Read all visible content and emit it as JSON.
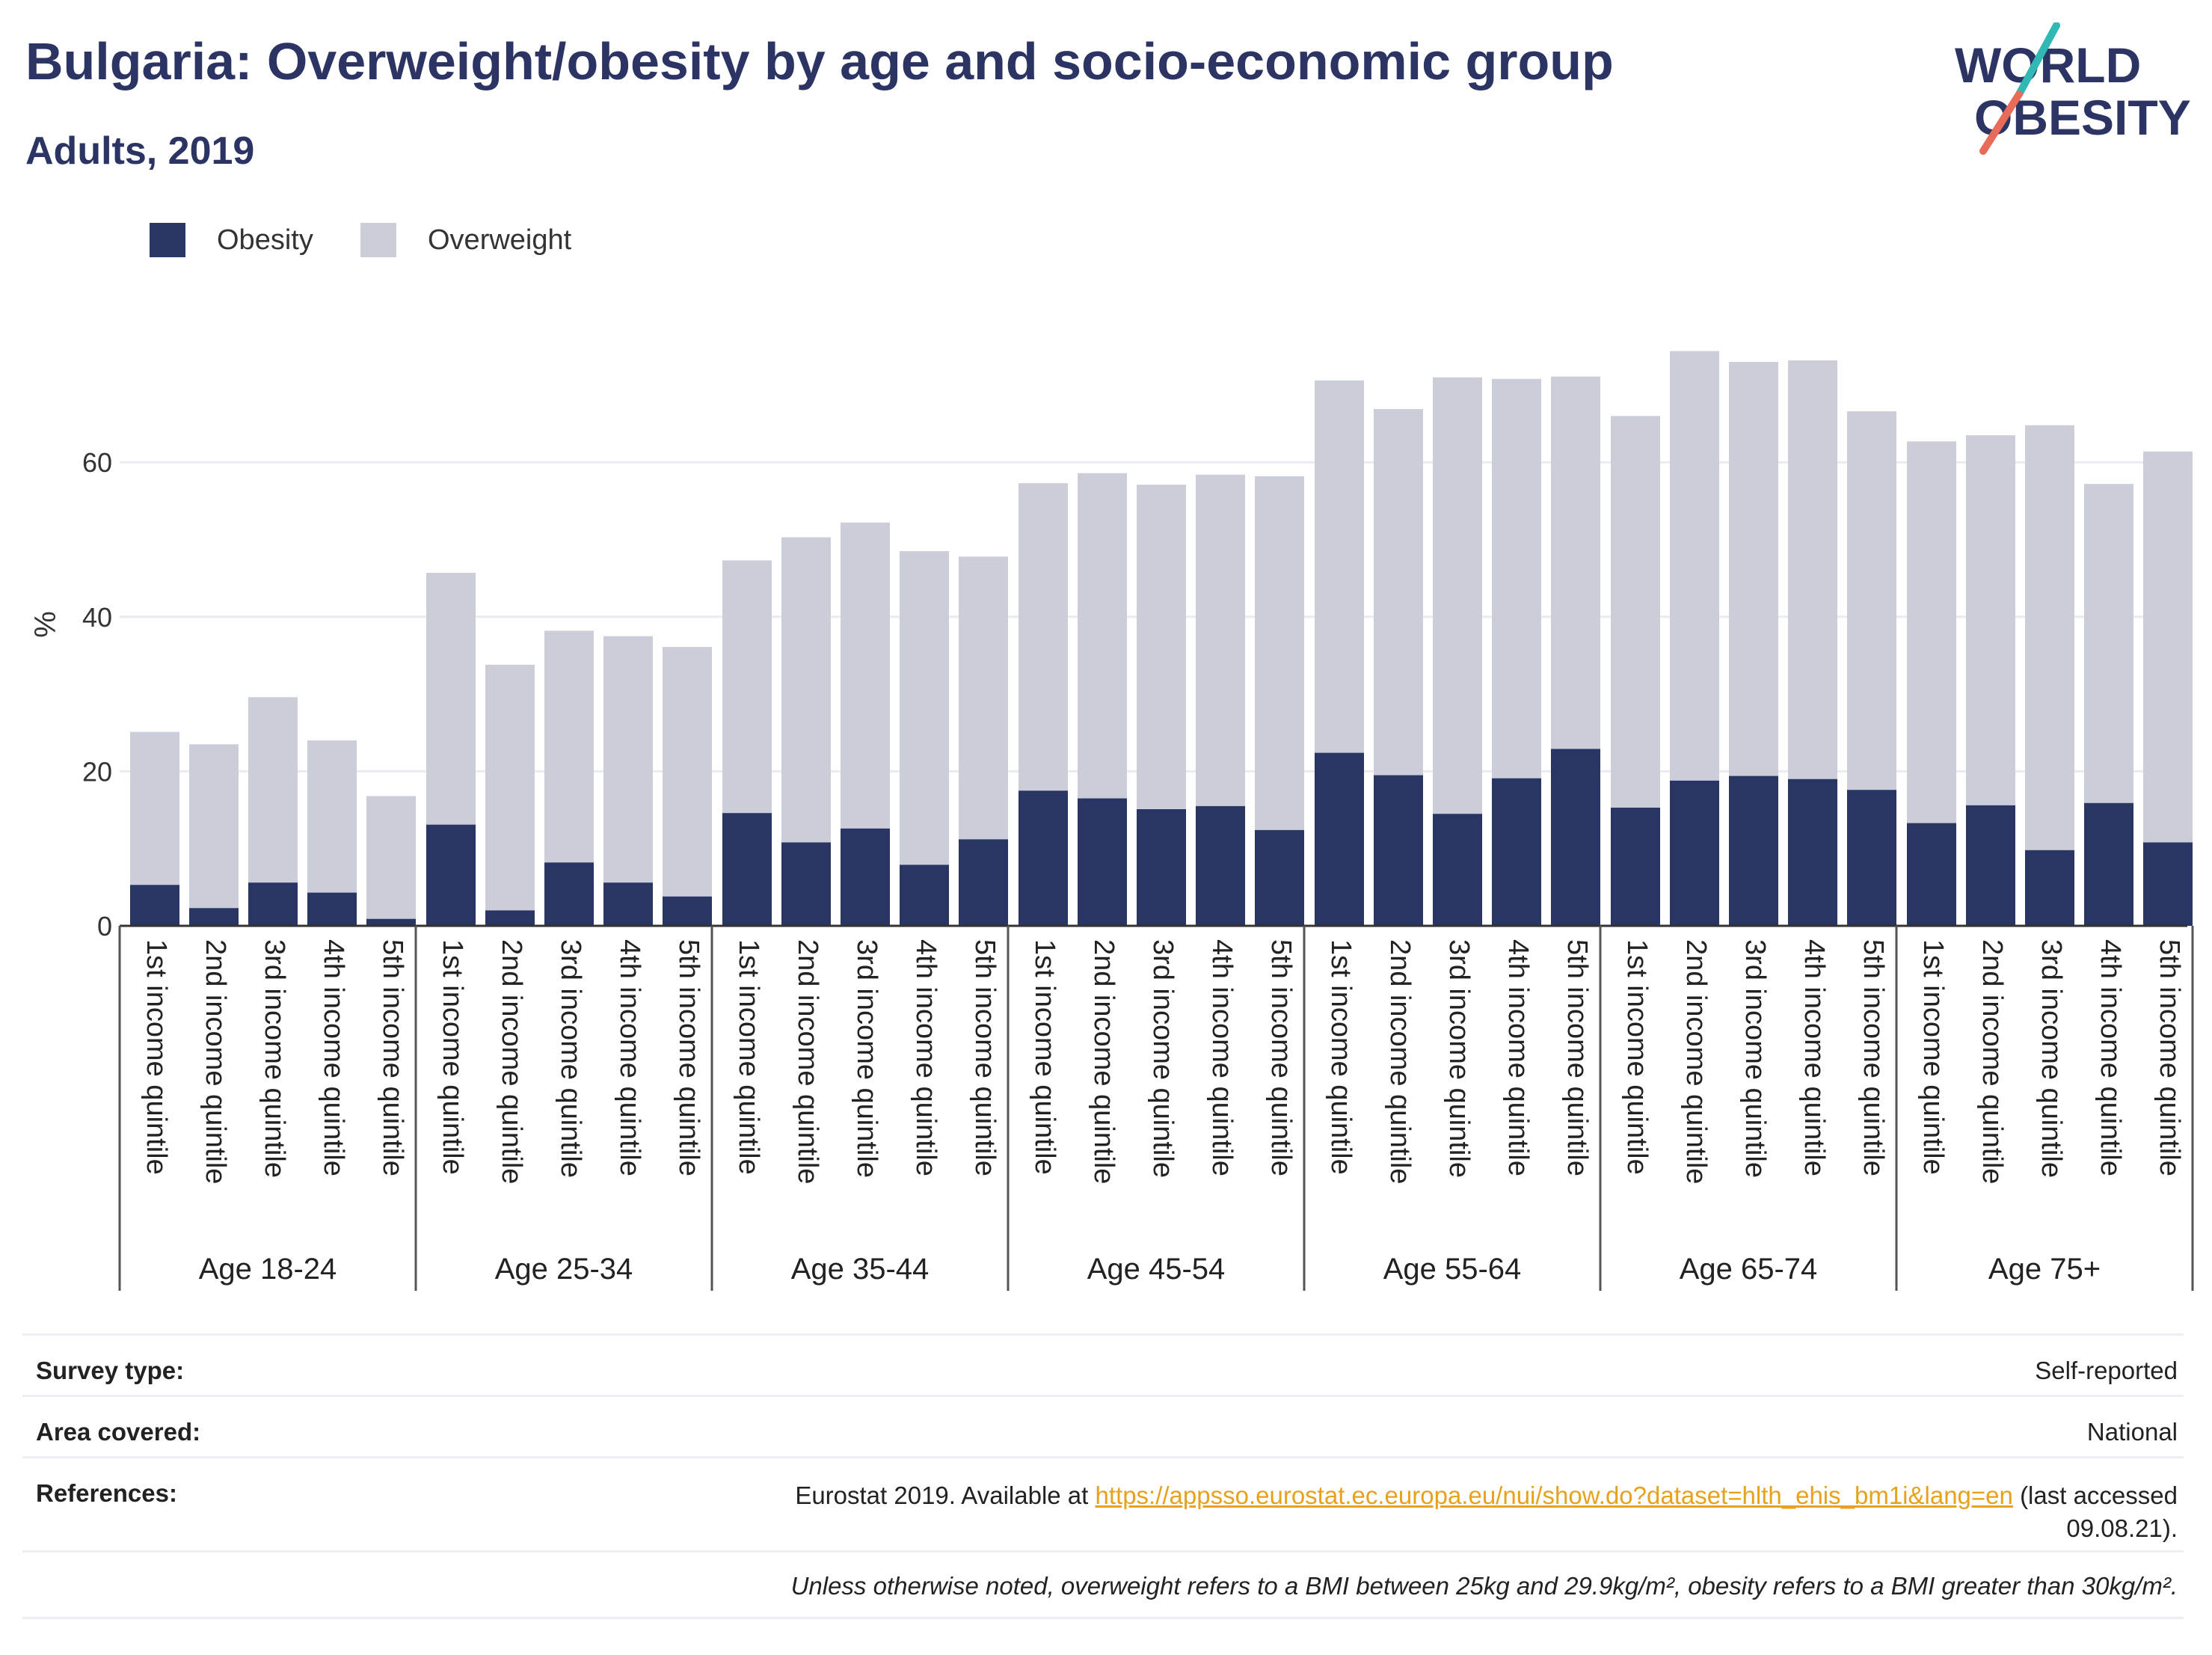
{
  "header": {
    "title": "Bulgaria: Overweight/obesity by age and socio-economic group",
    "subtitle": "Adults, 2019"
  },
  "logo": {
    "line1": "WORLD",
    "line2": "OBESITY"
  },
  "colors": {
    "obesity": "#293563",
    "overweight": "#cbcdd9",
    "title": "#2b3463",
    "link": "#e6a21b",
    "gridline": "#e9ebf0"
  },
  "chart_data": {
    "type": "bar",
    "stacked": true,
    "ylabel": "%",
    "ylim": [
      0,
      80
    ],
    "yticks": [
      0,
      20,
      40,
      60
    ],
    "grid": true,
    "legend_position": "top-left",
    "groups": [
      "Age 18-24",
      "Age 25-34",
      "Age 35-44",
      "Age 45-54",
      "Age 55-64",
      "Age 65-74",
      "Age 75+"
    ],
    "categories": [
      "1st income quintile",
      "2nd income quintile",
      "3rd income quintile",
      "4th income quintile",
      "5th income quintile"
    ],
    "series": [
      {
        "name": "Obesity",
        "color": "#293563",
        "values": [
          [
            5.3,
            2.3,
            5.6,
            4.3,
            0.9
          ],
          [
            13.1,
            2.0,
            8.2,
            5.6,
            3.8
          ],
          [
            14.6,
            10.8,
            12.6,
            7.9,
            11.2
          ],
          [
            17.5,
            16.5,
            15.1,
            15.5,
            12.4
          ],
          [
            22.4,
            19.5,
            14.5,
            19.1,
            22.9
          ],
          [
            15.3,
            18.8,
            19.4,
            19.0,
            17.6
          ],
          [
            13.3,
            15.6,
            9.8,
            15.9,
            10.8
          ]
        ]
      },
      {
        "name": "Overweight",
        "color": "#cbcdd9",
        "values": [
          [
            19.8,
            21.2,
            24.0,
            19.7,
            15.9
          ],
          [
            32.6,
            31.8,
            30.0,
            31.9,
            32.3
          ],
          [
            32.7,
            39.5,
            39.6,
            40.6,
            36.6
          ],
          [
            39.8,
            42.1,
            42.0,
            42.9,
            45.8
          ],
          [
            48.2,
            47.4,
            56.5,
            51.7,
            48.2
          ],
          [
            50.7,
            55.6,
            53.6,
            54.2,
            49.0
          ],
          [
            49.4,
            47.9,
            55.0,
            41.3,
            50.6
          ]
        ]
      }
    ]
  },
  "info": {
    "survey_type_label": "Survey type:",
    "survey_type_value": "Self-reported",
    "area_label": "Area covered:",
    "area_value": "National",
    "references_label": "References:",
    "references_prefix": "Eurostat 2019. Available at",
    "references_link": "https://appsso.eurostat.ec.europa.eu/nui/show.do?dataset=hlth_ehis_bm1i&lang=en",
    "references_suffix": "(last accessed",
    "references_date": "09.08.21).",
    "note": "Unless otherwise noted, overweight refers to a BMI between 25kg and 29.9kg/m², obesity refers to a BMI greater than 30kg/m²."
  }
}
